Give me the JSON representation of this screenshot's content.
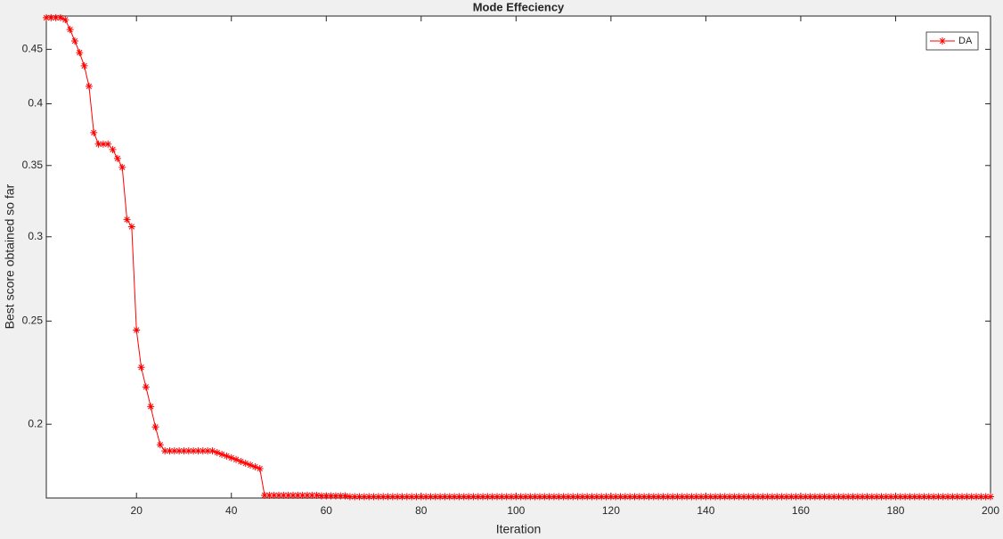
{
  "chart_data": {
    "type": "line",
    "title": "Mode Effeciency",
    "x_label": "Iteration",
    "y_label": "Best score obtained so far",
    "xlim": [
      1,
      200
    ],
    "xticks": [
      20,
      40,
      60,
      80,
      100,
      120,
      140,
      160,
      180,
      200
    ],
    "ylim": [
      0.1705,
      0.4836
    ],
    "yticks": [
      0.2,
      0.25,
      0.3,
      0.35,
      0.4,
      0.45
    ],
    "yscale": "log",
    "grid": false,
    "legend": "upper right",
    "x": [
      1,
      2,
      3,
      4,
      5,
      6,
      7,
      8,
      9,
      10,
      11,
      12,
      13,
      14,
      15,
      16,
      17,
      18,
      19,
      20,
      21,
      22,
      23,
      24,
      25,
      26,
      27,
      28,
      29,
      30,
      31,
      32,
      33,
      34,
      35,
      36,
      37,
      38,
      39,
      40,
      41,
      42,
      43,
      44,
      45,
      46,
      47,
      48,
      49,
      50,
      51,
      52,
      53,
      54,
      55,
      56,
      57,
      58,
      59,
      60,
      61,
      62,
      63,
      64,
      65,
      66,
      67,
      68,
      69,
      70,
      71,
      72,
      73,
      74,
      75,
      76,
      77,
      78,
      79,
      80,
      81,
      82,
      83,
      84,
      85,
      86,
      87,
      88,
      89,
      90,
      91,
      92,
      93,
      94,
      95,
      96,
      97,
      98,
      99,
      100,
      101,
      102,
      103,
      104,
      105,
      106,
      107,
      108,
      109,
      110,
      111,
      112,
      113,
      114,
      115,
      116,
      117,
      118,
      119,
      120,
      121,
      122,
      123,
      124,
      125,
      126,
      127,
      128,
      129,
      130,
      131,
      132,
      133,
      134,
      135,
      136,
      137,
      138,
      139,
      140,
      141,
      142,
      143,
      144,
      145,
      146,
      147,
      148,
      149,
      150,
      151,
      152,
      153,
      154,
      155,
      156,
      157,
      158,
      159,
      160,
      161,
      162,
      163,
      164,
      165,
      166,
      167,
      168,
      169,
      170,
      171,
      172,
      173,
      174,
      175,
      176,
      177,
      178,
      179,
      180,
      181,
      182,
      183,
      184,
      185,
      186,
      187,
      188,
      189,
      190,
      191,
      192,
      193,
      194,
      195,
      196,
      197,
      198,
      199,
      200
    ],
    "series": [
      {
        "name": "DA",
        "color": "#ff0000",
        "values": [
          0.4818,
          0.4818,
          0.4818,
          0.4818,
          0.4798,
          0.4697,
          0.4582,
          0.4468,
          0.4342,
          0.4154,
          0.3758,
          0.3666,
          0.3666,
          0.3666,
          0.3623,
          0.3554,
          0.3486,
          0.3114,
          0.3066,
          0.2452,
          0.2262,
          0.2168,
          0.2078,
          0.1988,
          0.1913,
          0.1888,
          0.1888,
          0.1888,
          0.1888,
          0.1888,
          0.1888,
          0.1888,
          0.1888,
          0.1888,
          0.1888,
          0.1888,
          0.1881,
          0.1874,
          0.1867,
          0.186,
          0.1853,
          0.1845,
          0.1838,
          0.1831,
          0.1824,
          0.1817,
          0.1715,
          0.1715,
          0.1715,
          0.1715,
          0.1715,
          0.1715,
          0.1715,
          0.1715,
          0.1715,
          0.1715,
          0.1715,
          0.1715,
          0.1713,
          0.1713,
          0.1713,
          0.1713,
          0.1713,
          0.1713,
          0.171,
          0.171,
          0.171,
          0.171,
          0.171,
          0.171,
          0.171,
          0.171,
          0.171,
          0.171,
          0.171,
          0.171,
          0.171,
          0.171,
          0.171,
          0.171,
          0.171,
          0.171,
          0.171,
          0.171,
          0.171,
          0.171,
          0.171,
          0.171,
          0.171,
          0.171,
          0.171,
          0.171,
          0.171,
          0.171,
          0.171,
          0.171,
          0.171,
          0.171,
          0.171,
          0.171,
          0.171,
          0.171,
          0.171,
          0.171,
          0.171,
          0.171,
          0.171,
          0.171,
          0.171,
          0.171,
          0.171,
          0.171,
          0.171,
          0.171,
          0.171,
          0.171,
          0.171,
          0.171,
          0.171,
          0.171,
          0.171,
          0.171,
          0.171,
          0.171,
          0.171,
          0.171,
          0.171,
          0.171,
          0.171,
          0.171,
          0.171,
          0.171,
          0.171,
          0.171,
          0.171,
          0.171,
          0.171,
          0.171,
          0.171,
          0.171,
          0.171,
          0.171,
          0.171,
          0.171,
          0.171,
          0.171,
          0.171,
          0.171,
          0.171,
          0.171,
          0.171,
          0.171,
          0.171,
          0.171,
          0.171,
          0.171,
          0.171,
          0.171,
          0.171,
          0.171,
          0.171,
          0.171,
          0.171,
          0.171,
          0.171,
          0.171,
          0.171,
          0.171,
          0.171,
          0.171,
          0.171,
          0.171,
          0.171,
          0.171,
          0.171,
          0.171,
          0.171,
          0.171,
          0.171,
          0.171,
          0.171,
          0.171,
          0.171,
          0.171,
          0.171,
          0.171,
          0.171,
          0.171,
          0.171,
          0.171,
          0.171,
          0.171,
          0.171,
          0.171,
          0.171,
          0.171,
          0.171,
          0.171,
          0.171,
          0.171
        ]
      }
    ]
  }
}
